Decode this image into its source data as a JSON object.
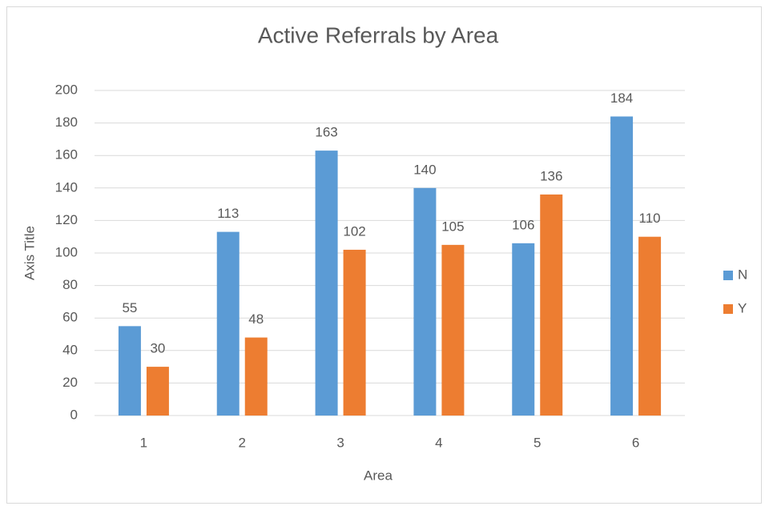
{
  "chart_data": {
    "type": "bar",
    "title": "Active Referrals by Area",
    "x_label": "Area",
    "y_label": "Axis Title",
    "categories": [
      "1",
      "2",
      "3",
      "4",
      "5",
      "6"
    ],
    "series": [
      {
        "name": "N",
        "color": "#5b9bd5",
        "values": [
          55,
          113,
          163,
          140,
          106,
          184
        ]
      },
      {
        "name": "Y",
        "color": "#ed7d31",
        "values": [
          30,
          48,
          102,
          105,
          136,
          110
        ]
      }
    ],
    "ylim": [
      0,
      200
    ],
    "yticks": [
      0,
      20,
      40,
      60,
      80,
      100,
      120,
      140,
      160,
      180,
      200
    ],
    "grid": true,
    "legend": "right",
    "data_labels": true
  }
}
